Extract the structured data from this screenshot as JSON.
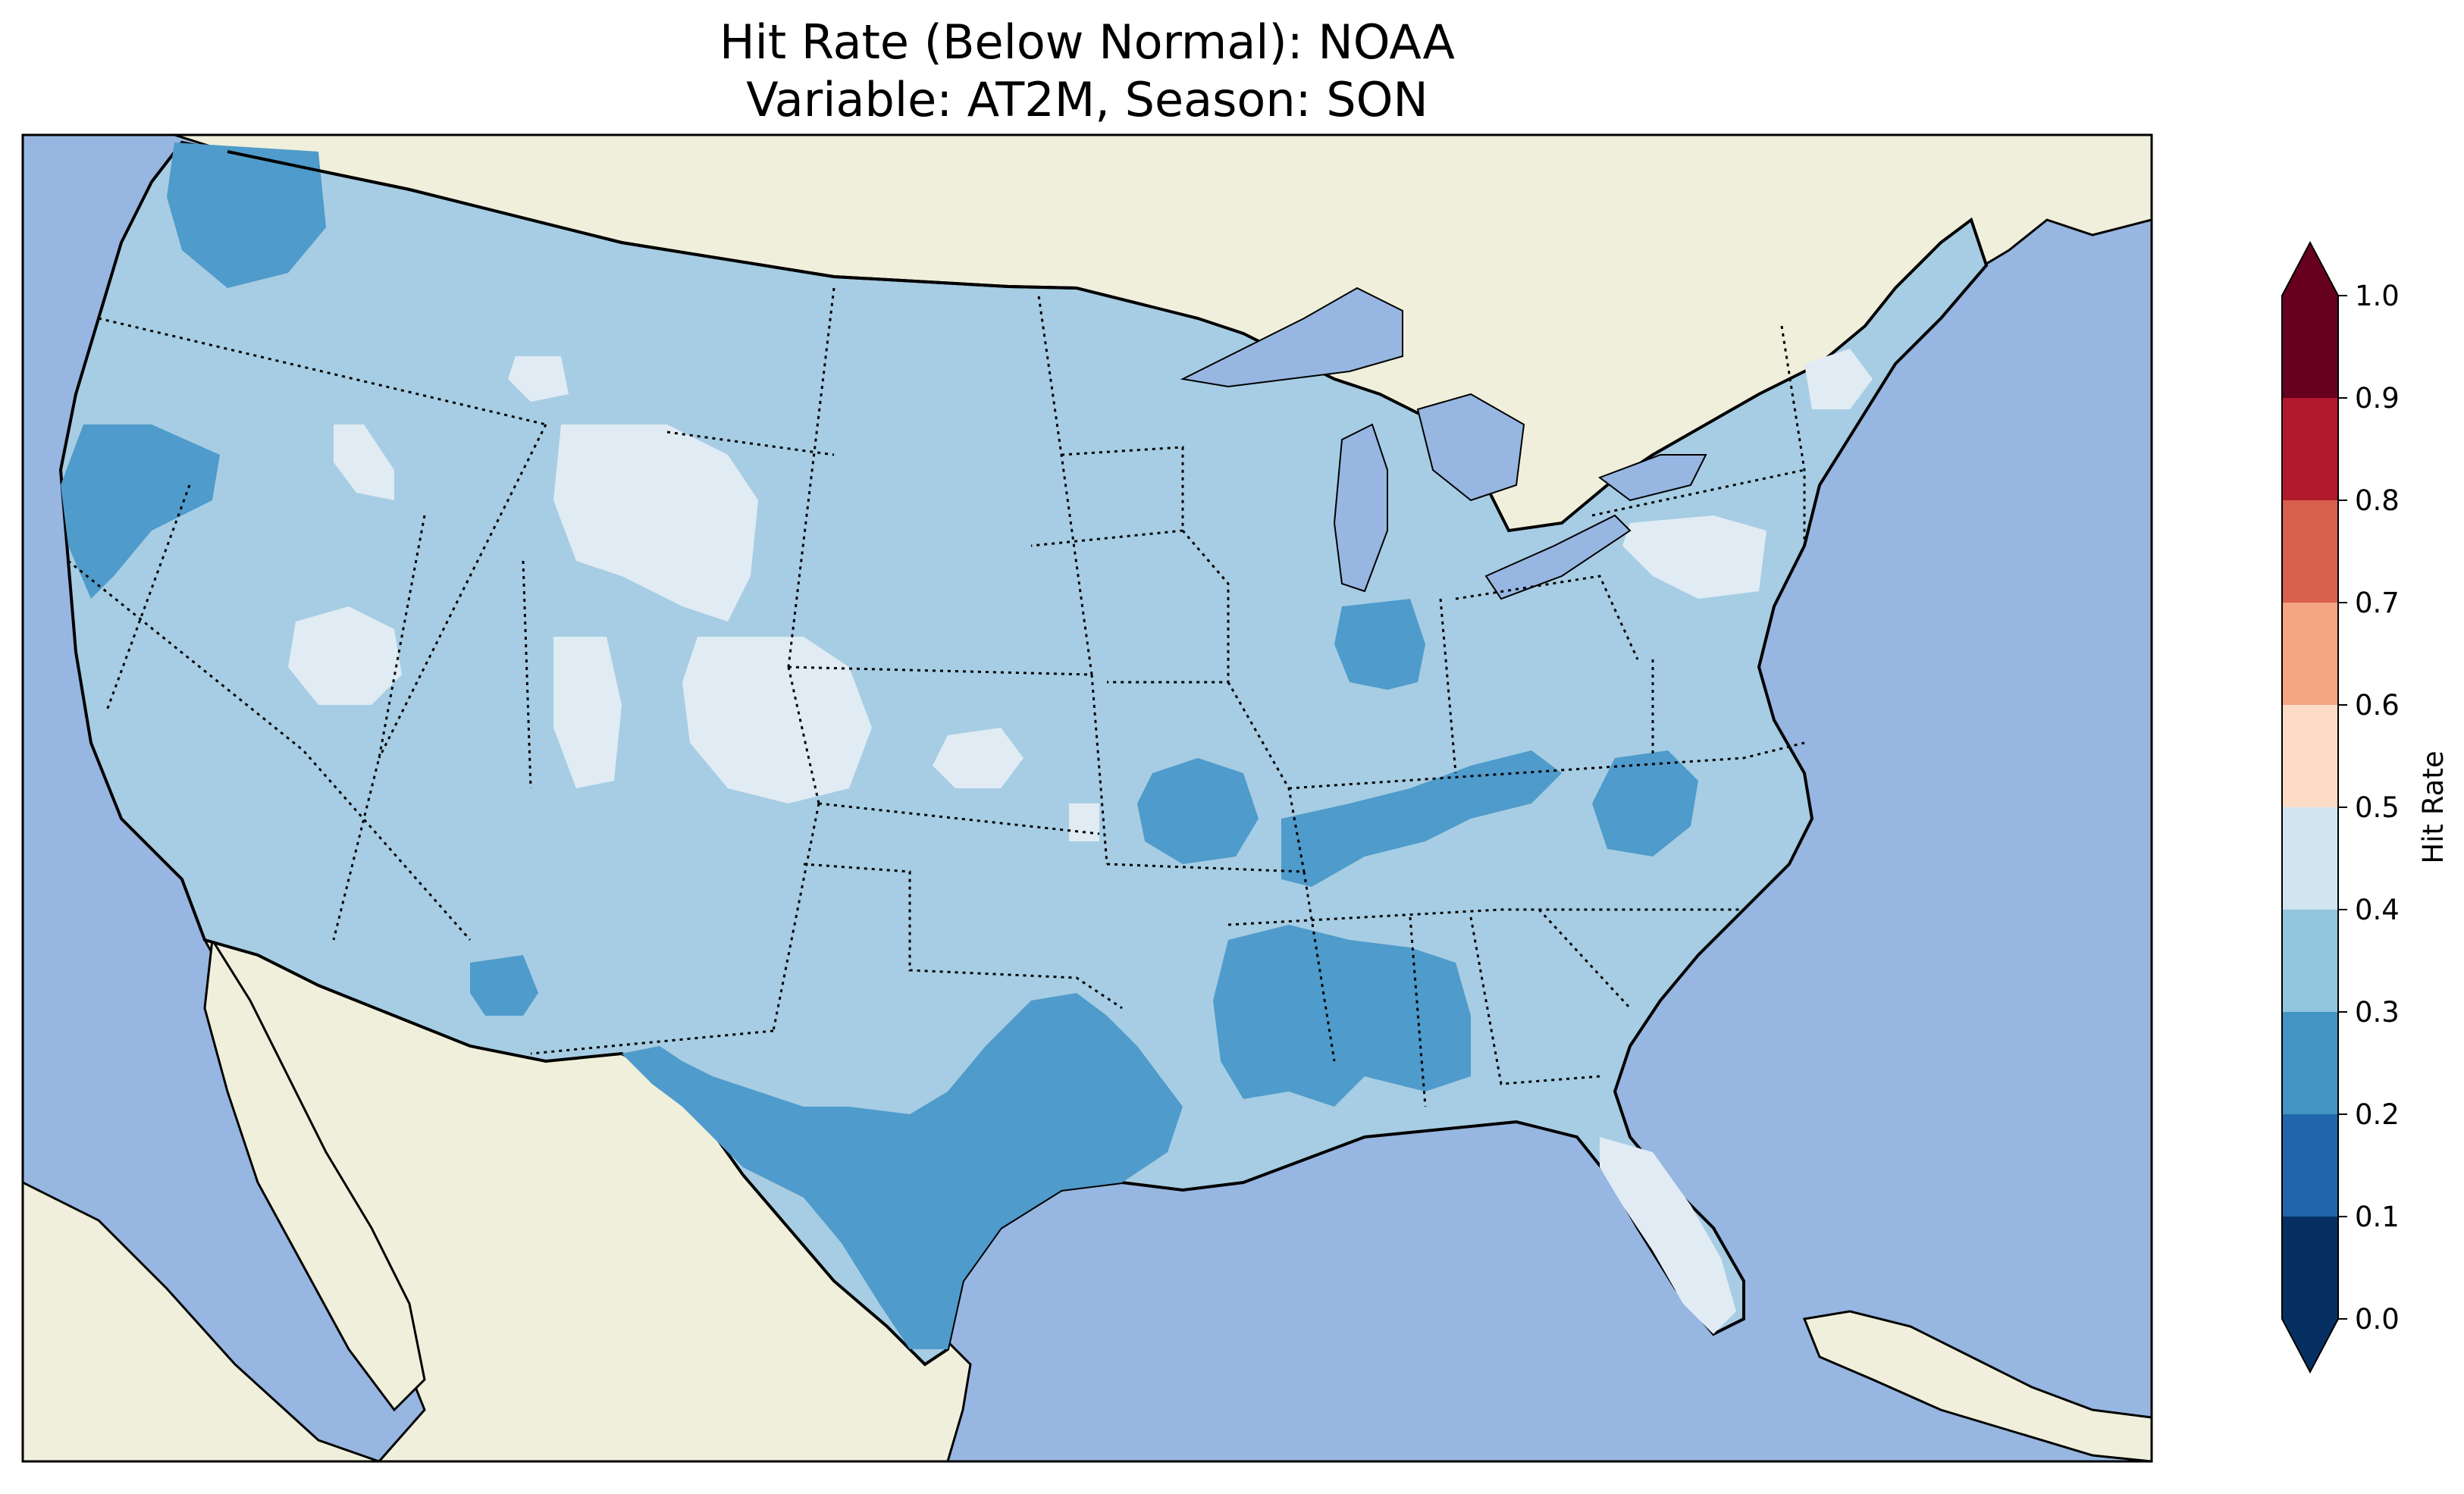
{
  "title": {
    "line1": "Hit Rate (Below Normal): NOAA",
    "line2": "Variable: AT2M, Season: SON"
  },
  "map": {
    "region": "Contiguous United States",
    "ocean_color": "#97b6e1",
    "land_color": "#efefdb",
    "border_color": "#000000"
  },
  "colorbar": {
    "label": "Hit Rate",
    "ticks": [
      "0.0",
      "0.1",
      "0.2",
      "0.3",
      "0.4",
      "0.5",
      "0.6",
      "0.7",
      "0.8",
      "0.9",
      "1.0"
    ],
    "bins": [
      {
        "range": [
          0.0,
          0.1
        ],
        "color": "#053061"
      },
      {
        "range": [
          0.1,
          0.2
        ],
        "color": "#2166ac"
      },
      {
        "range": [
          0.2,
          0.3
        ],
        "color": "#4393c3"
      },
      {
        "range": [
          0.3,
          0.4
        ],
        "color": "#92c5de"
      },
      {
        "range": [
          0.4,
          0.5
        ],
        "color": "#d1e5f0"
      },
      {
        "range": [
          0.5,
          0.6
        ],
        "color": "#fddbc7"
      },
      {
        "range": [
          0.6,
          0.7
        ],
        "color": "#f4a582"
      },
      {
        "range": [
          0.7,
          0.8
        ],
        "color": "#d6604d"
      },
      {
        "range": [
          0.8,
          0.9
        ],
        "color": "#b2182b"
      },
      {
        "range": [
          0.9,
          1.0
        ],
        "color": "#67001f"
      }
    ],
    "extend": "both"
  },
  "chart_data": {
    "type": "heatmap",
    "title": "Hit Rate (Below Normal): NOAA\nVariable: AT2M, Season: SON",
    "colorbar_label": "Hit Rate",
    "value_range": [
      0.0,
      1.0
    ],
    "dominant_value_range": [
      0.3,
      0.4
    ],
    "regions": [
      {
        "area": "Most of CONUS (background)",
        "range": [
          0.3,
          0.4
        ]
      },
      {
        "area": "Western Washington / Puget Sound",
        "range": [
          0.2,
          0.3
        ]
      },
      {
        "area": "Western Oregon / NW California coast",
        "range": [
          0.2,
          0.3
        ]
      },
      {
        "area": "Texas (central, south, east)",
        "range": [
          0.2,
          0.3
        ]
      },
      {
        "area": "Louisiana / Mississippi / Alabama",
        "range": [
          0.2,
          0.3
        ]
      },
      {
        "area": "Tennessee / Kentucky band",
        "range": [
          0.2,
          0.3
        ]
      },
      {
        "area": "Southern Missouri",
        "range": [
          0.2,
          0.3
        ]
      },
      {
        "area": "Illinois / Indiana (central)",
        "range": [
          0.2,
          0.3
        ]
      },
      {
        "area": "North Carolina / Virginia (interior)",
        "range": [
          0.2,
          0.3
        ]
      },
      {
        "area": "Southern Arizona",
        "range": [
          0.2,
          0.3
        ]
      },
      {
        "area": "Wyoming / Montana",
        "range": [
          0.4,
          0.5
        ]
      },
      {
        "area": "Colorado",
        "range": [
          0.4,
          0.5
        ]
      },
      {
        "area": "Central Utah",
        "range": [
          0.4,
          0.5
        ]
      },
      {
        "area": "Central Nevada",
        "range": [
          0.4,
          0.5
        ]
      },
      {
        "area": "Southern Idaho",
        "range": [
          0.4,
          0.5
        ]
      },
      {
        "area": "Western Kansas",
        "range": [
          0.4,
          0.5
        ]
      },
      {
        "area": "Pennsylvania / New York",
        "range": [
          0.4,
          0.5
        ]
      },
      {
        "area": "Florida peninsula",
        "range": [
          0.4,
          0.5
        ]
      },
      {
        "area": "Northern New England",
        "range": [
          0.4,
          0.5
        ]
      }
    ]
  }
}
